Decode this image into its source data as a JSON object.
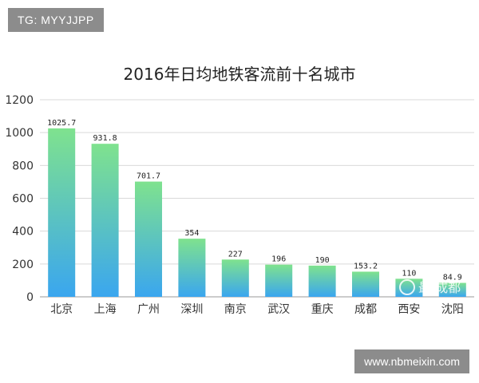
{
  "overlays": {
    "top_tag": "TG: MYYJJPP",
    "bottom_tag": "www.nbmeixin.com",
    "logo_text": "最 成都"
  },
  "chart_data": {
    "type": "bar",
    "title": "2016年日均地铁客流前十名城市",
    "xlabel": "",
    "ylabel": "",
    "ylim": [
      0,
      1200
    ],
    "yticks": [
      0,
      200,
      400,
      600,
      800,
      1000,
      1200
    ],
    "grid": true,
    "legend": "none",
    "categories": [
      "北京",
      "上海",
      "广州",
      "深圳",
      "南京",
      "武汉",
      "重庆",
      "成都",
      "西安",
      "沈阳"
    ],
    "values": [
      1025.7,
      931.8,
      701.7,
      354,
      227,
      196,
      190,
      153.2,
      110,
      84.9
    ],
    "value_labels": [
      "1025.7",
      "931.8",
      "701.7",
      "354",
      "227",
      "196",
      "190",
      "153.2",
      "110",
      "84.9"
    ],
    "colors": {
      "bar_top": "#7fe28e",
      "bar_bottom": "#3aa6ef",
      "grid": "#d9d9d9",
      "axis": "#999999"
    }
  }
}
